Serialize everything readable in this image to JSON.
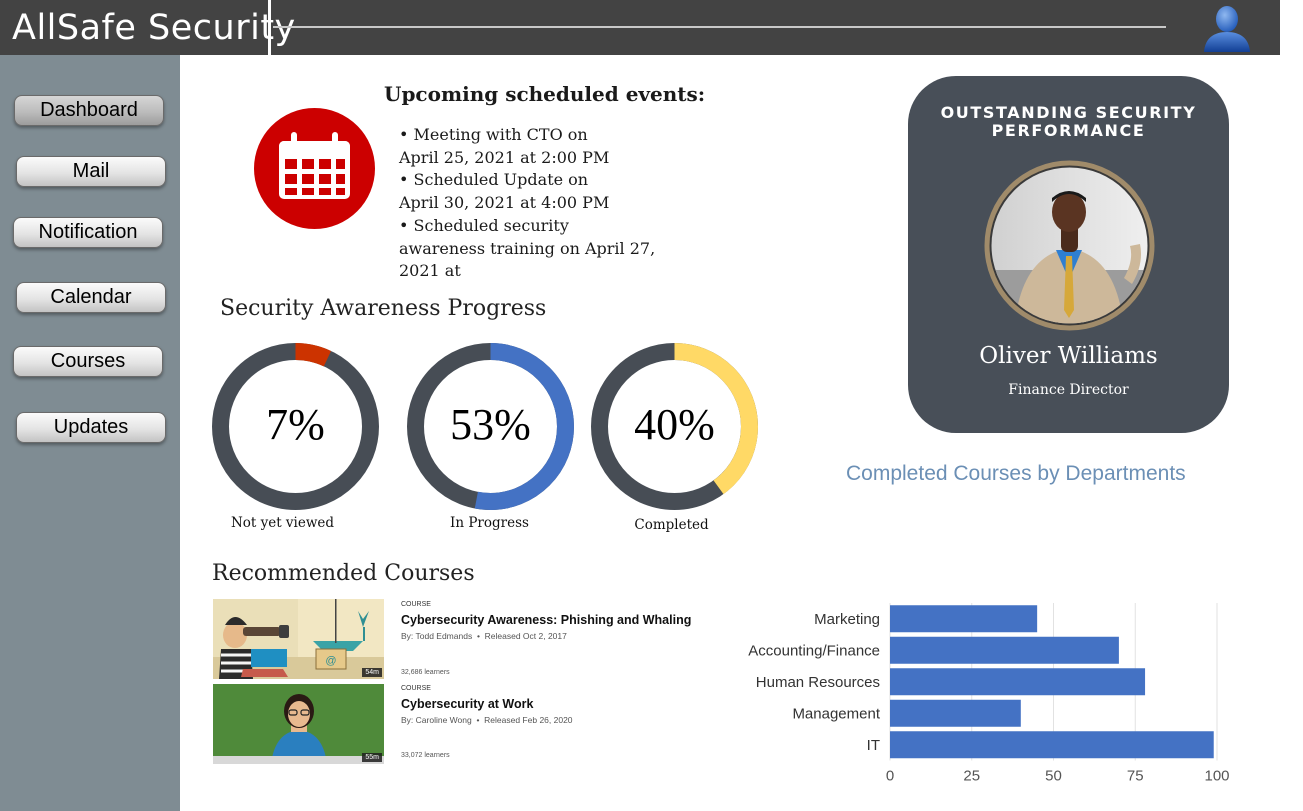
{
  "header": {
    "title": "AllSafe Security",
    "user_icon": "user-avatar-icon"
  },
  "sidebar": {
    "items": [
      {
        "label": "Dashboard",
        "active": true
      },
      {
        "label": "Mail"
      },
      {
        "label": "Notification"
      },
      {
        "label": "Calendar"
      },
      {
        "label": "Courses"
      },
      {
        "label": "Updates"
      }
    ]
  },
  "events": {
    "title": "Upcoming scheduled events:",
    "icon": "calendar-icon",
    "items": [
      "• Meeting with CTO on April 25, 2021 at 2:00 PM",
      "• Scheduled Update on April 30, 2021 at 4:00 PM",
      "• Scheduled security awareness training on April 27, 2021 at"
    ]
  },
  "progress": {
    "title": "Security Awareness Progress",
    "items": [
      {
        "value": "7%",
        "fraction": 0.07,
        "label": "Not yet viewed",
        "color": "#cc3300"
      },
      {
        "value": "53%",
        "fraction": 0.53,
        "label": "In Progress",
        "color": "#4472c4"
      },
      {
        "value": "40%",
        "fraction": 0.4,
        "label": "Completed",
        "color": "#ffd966"
      }
    ],
    "track_color": "#474d55"
  },
  "recommended": {
    "title": "Recommended Courses",
    "courses": [
      {
        "kind": "COURSE",
        "title": "Cybersecurity Awareness: Phishing and Whaling",
        "author": "By: Todd Edmands",
        "released": "Released Oct 2, 2017",
        "learners": "32,686 learners",
        "duration": "54m"
      },
      {
        "kind": "COURSE",
        "title": "Cybersecurity at Work",
        "author": "By: Caroline Wong",
        "released": "Released Feb 26, 2020",
        "learners": "33,072 learners",
        "duration": "55m"
      }
    ]
  },
  "award": {
    "title": "OUTSTANDING SECURITY PERFORMANCE",
    "name": "Oliver Williams",
    "role": "Finance Director"
  },
  "chart_data": {
    "type": "bar",
    "orientation": "horizontal",
    "title": "Completed Courses by Departments",
    "categories": [
      "Marketing",
      "Accounting/Finance",
      "Human Resources",
      "Management",
      "IT"
    ],
    "values": [
      45,
      70,
      78,
      40,
      99
    ],
    "xlim": [
      0,
      100
    ],
    "xticks": [
      0,
      25,
      50,
      75,
      100
    ],
    "grid": true,
    "bar_color": "#4472c4"
  }
}
